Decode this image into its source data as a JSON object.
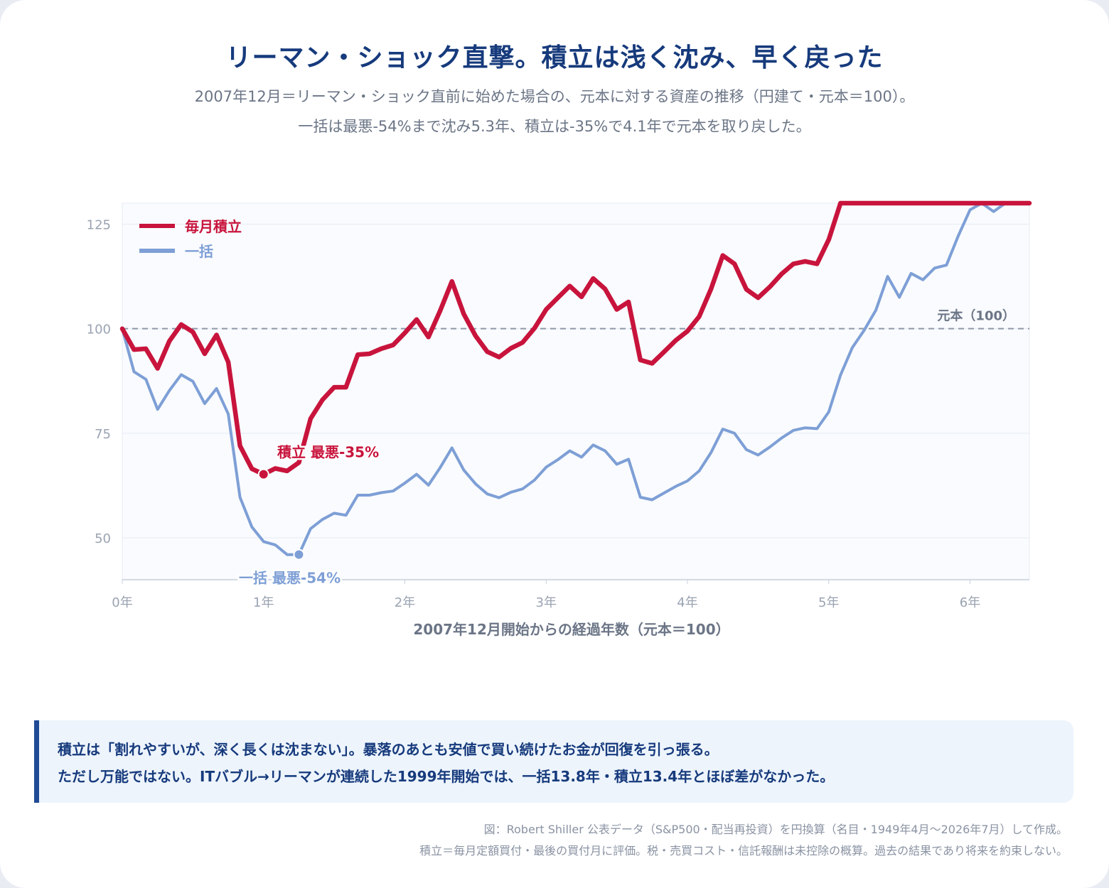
{
  "header": {
    "title": "リーマン・ショック直撃。積立は浅く沈み、早く戻った",
    "subtitle_line1": "2007年12月＝リーマン・ショック直前に始めた場合の、元本に対する資産の推移（円建て・元本＝100）。",
    "subtitle_line2": "一括は最悪-54%まで沈み5.3年、積立は-35%で4.1年で元本を取り戻した。"
  },
  "chart_data": {
    "type": "line",
    "xlabel": "2007年12月開始からの経過年数（元本＝100）",
    "ylabel": "",
    "xlim": [
      0,
      6.42
    ],
    "ylim": [
      40,
      130
    ],
    "x_ticks": [
      0,
      1,
      2,
      3,
      4,
      5,
      6
    ],
    "x_tick_labels": [
      "0年",
      "1年",
      "2年",
      "3年",
      "4年",
      "5年",
      "6年"
    ],
    "y_ticks": [
      50,
      75,
      100,
      125
    ],
    "y_tick_labels": [
      "50",
      "75",
      "100",
      "125"
    ],
    "grid": true,
    "legend": "top-left",
    "reference_line": {
      "y": 100,
      "label": "元本（100）"
    },
    "series": [
      {
        "name": "毎月積立",
        "color": "#c8143c",
        "x": [
          0,
          0.083,
          0.167,
          0.25,
          0.333,
          0.417,
          0.5,
          0.583,
          0.667,
          0.75,
          0.833,
          0.917,
          1.0,
          1.083,
          1.167,
          1.25,
          1.333,
          1.417,
          1.5,
          1.583,
          1.667,
          1.75,
          1.833,
          1.917,
          2.0,
          2.083,
          2.167,
          2.25,
          2.333,
          2.417,
          2.5,
          2.583,
          2.667,
          2.75,
          2.833,
          2.917,
          3.0,
          3.083,
          3.167,
          3.25,
          3.333,
          3.417,
          3.5,
          3.583,
          3.667,
          3.75,
          3.833,
          3.917,
          4.0,
          4.083,
          4.167,
          4.25,
          4.333,
          4.417,
          4.5,
          4.583,
          4.667,
          4.75,
          4.833,
          4.917,
          5.0,
          5.083,
          6.42
        ],
        "values": [
          100,
          95,
          95.2,
          90.5,
          97,
          101,
          99.2,
          94,
          98.5,
          92,
          72,
          66.5,
          65.2,
          66.6,
          66,
          68,
          78.5,
          83,
          86,
          86,
          93.8,
          94,
          95.2,
          96.1,
          99,
          102.2,
          98,
          104.3,
          111.3,
          103.5,
          98.3,
          94.5,
          93.2,
          95.3,
          96.7,
          100.1,
          104.6,
          107.4,
          110.2,
          107.6,
          112,
          109.5,
          104.6,
          106.4,
          92.5,
          91.7,
          94.4,
          97.2,
          99.4,
          102.9,
          109.5,
          117.5,
          115.5,
          109.4,
          107.4,
          110,
          113.1,
          115.5,
          116.1,
          115.5,
          121.3,
          130,
          130
        ]
      },
      {
        "name": "一括",
        "color": "#7e9fd6",
        "x": [
          0,
          0.083,
          0.167,
          0.25,
          0.333,
          0.417,
          0.5,
          0.583,
          0.667,
          0.75,
          0.833,
          0.917,
          1.0,
          1.083,
          1.167,
          1.25,
          1.333,
          1.417,
          1.5,
          1.583,
          1.667,
          1.75,
          1.833,
          1.917,
          2.0,
          2.083,
          2.167,
          2.25,
          2.333,
          2.417,
          2.5,
          2.583,
          2.667,
          2.75,
          2.833,
          2.917,
          3.0,
          3.083,
          3.167,
          3.25,
          3.333,
          3.417,
          3.5,
          3.583,
          3.667,
          3.75,
          3.833,
          3.917,
          4.0,
          4.083,
          4.167,
          4.25,
          4.333,
          4.417,
          4.5,
          4.583,
          4.667,
          4.75,
          4.833,
          4.917,
          5.0,
          5.083,
          5.167,
          5.25,
          5.333,
          5.417,
          5.5,
          5.583,
          5.667,
          5.75,
          5.833,
          5.917,
          6.0,
          6.083,
          6.167,
          6.25
        ],
        "values": [
          100,
          89.7,
          87.9,
          80.7,
          85.2,
          89,
          87.4,
          82.1,
          85.7,
          79.6,
          59.7,
          52.6,
          49.1,
          48.3,
          46,
          46,
          52.2,
          54.4,
          55.9,
          55.4,
          60.2,
          60.2,
          60.8,
          61.2,
          63.1,
          65.2,
          62.6,
          66.8,
          71.5,
          66.2,
          62.9,
          60.5,
          59.6,
          60.9,
          61.7,
          63.8,
          66.9,
          68.7,
          70.8,
          69.3,
          72.2,
          70.8,
          67.6,
          68.8,
          59.7,
          59.1,
          60.7,
          62.3,
          63.6,
          66,
          70.4,
          76,
          75,
          71.1,
          69.8,
          71.7,
          73.9,
          75.7,
          76.3,
          76.1,
          80.1,
          88.9,
          95.5,
          99.6,
          104.4,
          112.5,
          107.5,
          113.2,
          111.7,
          114.5,
          115.2,
          122.2,
          128.4,
          130,
          128,
          130
        ]
      }
    ],
    "annotations": [
      {
        "series": "毎月積立",
        "x": 1.0,
        "y": 65.2,
        "label": "積立 最悪-35%"
      },
      {
        "series": "一括",
        "x": 1.25,
        "y": 46,
        "label": "一括 最悪-54%"
      }
    ]
  },
  "callout": {
    "line1": "積立は「割れやすいが、深く長くは沈まない」。暴落のあとも安値で買い続けたお金が回復を引っ張る。",
    "line2": "ただし万能ではない。ITバブル→リーマンが連続した1999年開始では、一括13.8年・積立13.4年とほぼ差がなかった。",
    "accent_color": "#1f4a96"
  },
  "footnote": {
    "line1": "図：Robert Shiller 公表データ（S&P500・配当再投資）を円換算（名目・1949年4月〜2026年7月）して作成。",
    "line2": "積立＝毎月定額買付・最後の買付月に評価。税・売買コスト・信託報酬は未控除の概算。過去の結果であり将来を約束しない。"
  }
}
